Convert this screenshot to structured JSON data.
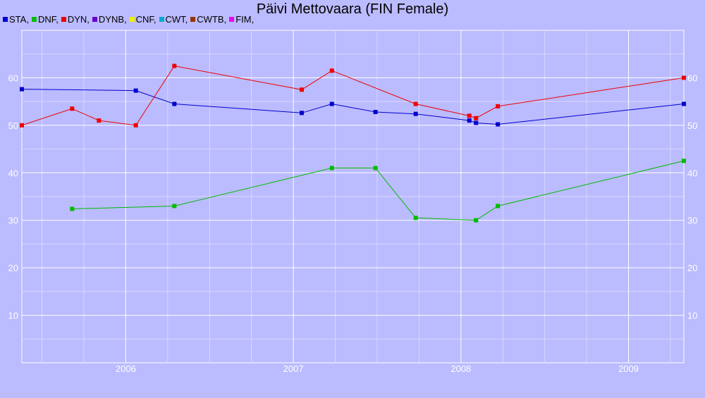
{
  "chart_data": {
    "type": "line",
    "title": "Päivi Mettovaara (FIN Female)",
    "legend": [
      {
        "label": "STA,",
        "color": "#0000cc"
      },
      {
        "label": "DNF,",
        "color": "#00bb00"
      },
      {
        "label": "DYN,",
        "color": "#ee0000"
      },
      {
        "label": "DYNB,",
        "color": "#6600cc"
      },
      {
        "label": "CNF,",
        "color": "#eeee00"
      },
      {
        "label": "CWT,",
        "color": "#00aacc"
      },
      {
        "label": "CWTB,",
        "color": "#993300"
      },
      {
        "label": "FIM,",
        "color": "#ee00ee"
      }
    ],
    "xlim": [
      2005.38,
      2009.33
    ],
    "ylim": [
      0,
      70
    ],
    "x_ticks": [
      2006,
      2007,
      2008,
      2009
    ],
    "x_tick_labels": [
      "2006",
      "2007",
      "2008",
      "2009"
    ],
    "y_ticks": [
      10,
      20,
      30,
      40,
      50,
      60
    ],
    "y_tick_labels": [
      "10",
      "20",
      "30",
      "40",
      "50",
      "60"
    ],
    "grid": true,
    "series": [
      {
        "name": "STA",
        "color": "#0000cc",
        "points": [
          [
            2005.38,
            57.6
          ],
          [
            2006.06,
            57.3
          ],
          [
            2006.29,
            54.5
          ],
          [
            2007.05,
            52.6
          ],
          [
            2007.23,
            54.5
          ],
          [
            2007.49,
            52.8
          ],
          [
            2007.73,
            52.4
          ],
          [
            2008.05,
            51.0
          ],
          [
            2008.09,
            50.5
          ],
          [
            2008.22,
            50.2
          ],
          [
            2009.33,
            54.5
          ]
        ]
      },
      {
        "name": "DNF",
        "color": "#00bb00",
        "points": [
          [
            2005.68,
            32.4
          ],
          [
            2006.29,
            33.0
          ],
          [
            2007.23,
            41.0
          ],
          [
            2007.49,
            41.0
          ],
          [
            2007.73,
            30.5
          ],
          [
            2008.09,
            30.0
          ],
          [
            2008.22,
            33.0
          ],
          [
            2009.33,
            42.5
          ]
        ]
      },
      {
        "name": "DYN",
        "color": "#ee0000",
        "points": [
          [
            2005.38,
            50.0
          ],
          [
            2005.68,
            53.5
          ],
          [
            2005.84,
            51.0
          ],
          [
            2006.06,
            50.0
          ],
          [
            2006.29,
            62.5
          ],
          [
            2007.05,
            57.5
          ],
          [
            2007.23,
            61.5
          ],
          [
            2007.73,
            54.5
          ],
          [
            2008.05,
            52.0
          ],
          [
            2008.09,
            51.5
          ],
          [
            2008.22,
            54.0
          ],
          [
            2009.33,
            60.0
          ]
        ]
      }
    ]
  }
}
